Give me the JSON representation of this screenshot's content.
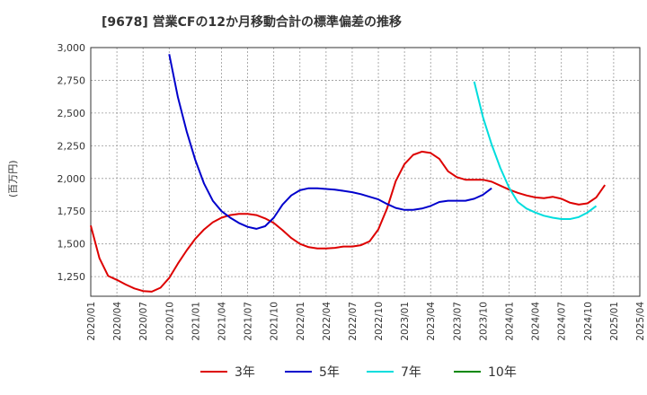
{
  "chart_data": {
    "type": "line",
    "title": "[9678]  営業CFの12か月移動合計の標準偏差の推移",
    "ylabel": "(百万円)",
    "xlabel": "",
    "ylim": [
      1100,
      3000
    ],
    "yticks": [
      1250,
      1500,
      1750,
      2000,
      2250,
      2500,
      2750,
      3000
    ],
    "ytick_labels": [
      "1,250",
      "1,500",
      "1,750",
      "2,000",
      "2,250",
      "2,500",
      "2,750",
      "3,000"
    ],
    "xticks": [
      "2020/01",
      "2020/04",
      "2020/07",
      "2020/10",
      "2021/01",
      "2021/04",
      "2021/07",
      "2021/10",
      "2022/01",
      "2022/04",
      "2022/07",
      "2022/10",
      "2023/01",
      "2023/04",
      "2023/07",
      "2023/10",
      "2024/01",
      "2024/04",
      "2024/07",
      "2024/10",
      "2025/01",
      "2025/04"
    ],
    "grid": true,
    "legend_position": "bottom",
    "series": [
      {
        "name": "3年",
        "color": "#dd0000",
        "start": "2020/01",
        "values": [
          1640,
          1390,
          1255,
          1225,
          1190,
          1160,
          1140,
          1135,
          1165,
          1240,
          1350,
          1450,
          1540,
          1610,
          1665,
          1700,
          1720,
          1730,
          1730,
          1720,
          1695,
          1660,
          1605,
          1545,
          1500,
          1475,
          1465,
          1465,
          1470,
          1480,
          1480,
          1490,
          1520,
          1610,
          1770,
          1980,
          2110,
          2180,
          2205,
          2195,
          2150,
          2055,
          2010,
          1990,
          1990,
          1990,
          1975,
          1945,
          1915,
          1890,
          1870,
          1855,
          1850,
          1860,
          1845,
          1815,
          1800,
          1810,
          1855,
          1950
        ]
      },
      {
        "name": "5年",
        "color": "#0000cc",
        "start": "2020/10",
        "values": [
          2950,
          2620,
          2360,
          2140,
          1960,
          1830,
          1750,
          1700,
          1660,
          1630,
          1615,
          1635,
          1700,
          1800,
          1870,
          1910,
          1925,
          1925,
          1920,
          1915,
          1905,
          1895,
          1880,
          1860,
          1840,
          1805,
          1775,
          1760,
          1760,
          1770,
          1790,
          1820,
          1830,
          1830,
          1830,
          1845,
          1875,
          1925
        ]
      },
      {
        "name": "7年",
        "color": "#00dddd",
        "start": "2023/09",
        "values": [
          2740,
          2470,
          2260,
          2080,
          1930,
          1820,
          1770,
          1740,
          1715,
          1700,
          1690,
          1690,
          1705,
          1740,
          1790
        ]
      },
      {
        "name": "10年",
        "color": "#008800",
        "start": "2024/10",
        "values": []
      }
    ]
  }
}
